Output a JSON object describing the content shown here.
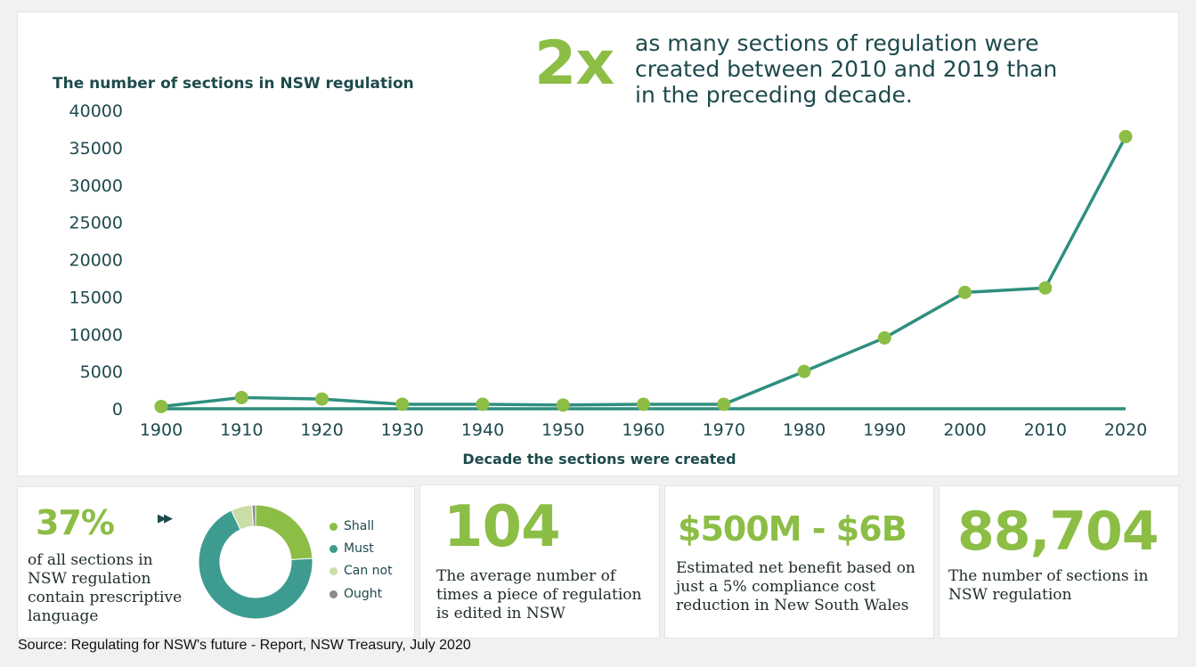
{
  "headline": {
    "multiplier": "2x",
    "text_lines": [
      "as many sections of regulation were",
      "created between 2010 and 2019 than",
      "in the preceding decade."
    ]
  },
  "chart_data": {
    "type": "line",
    "title": "The number of sections in NSW regulation",
    "xlabel": "Decade the sections were created",
    "ylabel": "",
    "x": [
      1900,
      1910,
      1920,
      1930,
      1940,
      1950,
      1960,
      1970,
      1980,
      1990,
      2000,
      2010,
      2020
    ],
    "ylim": [
      0,
      40000
    ],
    "y_ticks": [
      0,
      5000,
      10000,
      15000,
      20000,
      25000,
      30000,
      35000,
      40000
    ],
    "x_ticks": [
      1900,
      1910,
      1920,
      1930,
      1940,
      1950,
      1960,
      1970,
      1980,
      1990,
      2000,
      2010,
      2020
    ],
    "series": [
      {
        "values": [
          300,
          1500,
          1300,
          600,
          600,
          500,
          600,
          600,
          5000,
          9500,
          15600,
          16200,
          36500
        ]
      }
    ],
    "baseline_value": 0,
    "line_color": "#2f8f7f",
    "marker_color": "#8cbd45",
    "grid": false,
    "legend": "none"
  },
  "cards": {
    "prescriptive": {
      "percent": "37%",
      "text_lines": [
        "of all sections in",
        "NSW regulation",
        "contain prescriptive",
        "language"
      ],
      "arrows": "▶▶",
      "donut": {
        "type": "pie",
        "segments": [
          {
            "label": "Shall",
            "value": 24,
            "color": "#8cbd45"
          },
          {
            "label": "Must",
            "value": 69,
            "color": "#3d9c8f"
          },
          {
            "label": "Can not",
            "value": 6,
            "color": "#c9dea6"
          },
          {
            "label": "Ought",
            "value": 1,
            "color": "#8a8a8a"
          }
        ]
      }
    },
    "edits": {
      "value": "104",
      "text_lines": [
        "The average number of",
        "times a piece of regulation",
        "is edited in NSW"
      ]
    },
    "benefit": {
      "value": "$500M - $6B",
      "text_lines": [
        "Estimated net benefit based on",
        "just a 5% compliance cost",
        "reduction in New South Wales"
      ]
    },
    "sections": {
      "value": "88,704",
      "text_lines": [
        "The number of sections in",
        "NSW regulation"
      ]
    }
  },
  "source": "Source: Regulating for NSW's future - Report, NSW Treasury, July 2020",
  "colors": {
    "accent_green": "#8cbd45",
    "teal": "#2f8f7f",
    "dark_teal": "#1e4a4d"
  }
}
